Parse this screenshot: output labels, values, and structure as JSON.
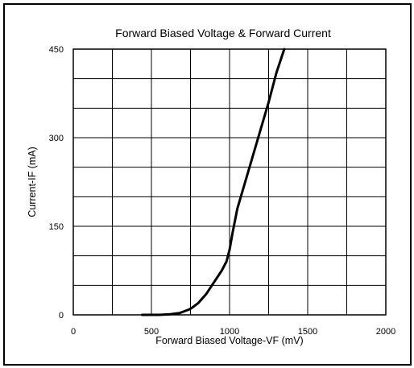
{
  "chart_data": {
    "type": "line",
    "title": "Forward Biased Voltage & Forward Current",
    "xlabel": "Forward Biased Voltage-VF (mV)",
    "ylabel": "Current-IF (mA)",
    "xlim": [
      0,
      2000
    ],
    "ylim": [
      0,
      450
    ],
    "x_ticks": [
      0,
      500,
      1000,
      1500,
      2000
    ],
    "x_tick_labels": [
      "0",
      "500",
      "1000",
      "1500",
      "2000"
    ],
    "y_ticks": [
      0,
      150,
      300,
      450
    ],
    "y_tick_labels": [
      "0",
      "150",
      "300",
      "450"
    ],
    "grid": true,
    "grid_x_step": 250,
    "grid_y_step": 50,
    "line_color": "#000000",
    "series": [
      {
        "x": [
          440,
          550,
          620,
          680,
          710,
          740,
          760,
          800,
          850,
          900,
          950,
          980,
          1000,
          1020,
          1050,
          1100,
          1150,
          1200,
          1250,
          1300,
          1350
        ],
        "y": [
          0,
          0,
          1,
          3,
          6,
          9,
          12,
          20,
          35,
          55,
          75,
          90,
          110,
          140,
          180,
          225,
          270,
          315,
          360,
          410,
          450
        ]
      }
    ]
  }
}
